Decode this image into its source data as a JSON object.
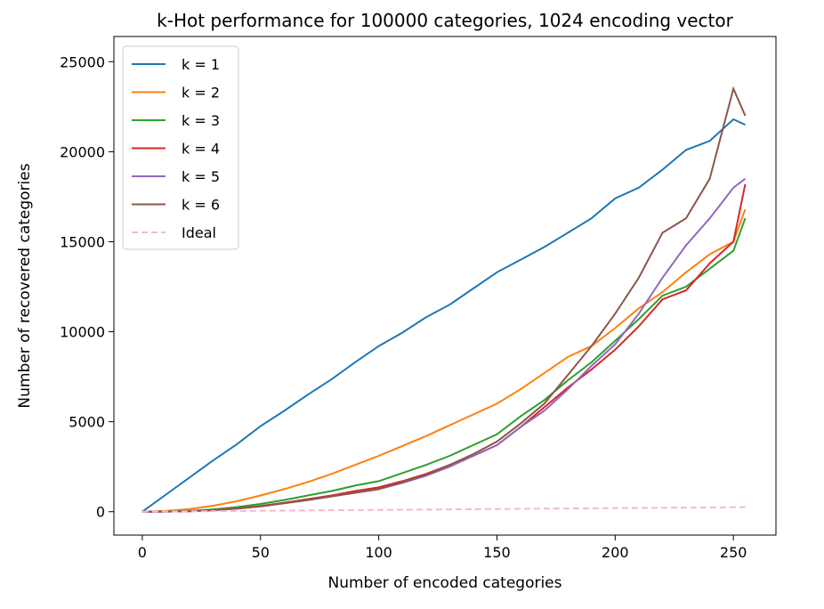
{
  "chart_data": {
    "type": "line",
    "title": "k-Hot performance for 100000 categories, 1024 encoding vector",
    "xlabel": "Number of encoded categories",
    "ylabel": "Number of recovered categories",
    "xlim": [
      -12,
      268
    ],
    "ylim": [
      -1300,
      26400
    ],
    "xticks": [
      0,
      50,
      100,
      150,
      200,
      250
    ],
    "yticks": [
      0,
      5000,
      10000,
      15000,
      20000,
      25000
    ],
    "grid": false,
    "legend_placement": "top-left",
    "x": [
      0,
      10,
      20,
      30,
      40,
      50,
      60,
      70,
      80,
      90,
      100,
      110,
      120,
      130,
      140,
      150,
      160,
      170,
      180,
      190,
      200,
      210,
      220,
      230,
      240,
      250,
      255
    ],
    "series": [
      {
        "name": "k = 1",
        "color": "#1f77b4",
        "dashed": false,
        "values": [
          0,
          950,
          1900,
          2850,
          3750,
          4750,
          5600,
          6500,
          7350,
          8300,
          9200,
          9950,
          10800,
          11500,
          12400,
          13300,
          14000,
          14700,
          15500,
          16300,
          17400,
          18000,
          19000,
          20100,
          20600,
          21800,
          21500
        ]
      },
      {
        "name": "k = 2",
        "color": "#ff7f0e",
        "dashed": false,
        "values": [
          0,
          40,
          150,
          330,
          580,
          900,
          1250,
          1650,
          2100,
          2600,
          3100,
          3650,
          4200,
          4800,
          5400,
          6000,
          6800,
          7700,
          8600,
          9200,
          10200,
          11300,
          12200,
          13300,
          14300,
          15000,
          16800
        ]
      },
      {
        "name": "k = 3",
        "color": "#2ca02c",
        "dashed": false,
        "values": [
          0,
          10,
          50,
          130,
          260,
          430,
          650,
          900,
          1150,
          1450,
          1700,
          2150,
          2600,
          3100,
          3700,
          4300,
          5300,
          6200,
          7300,
          8300,
          9500,
          10700,
          12000,
          12500,
          13500,
          14500,
          16300
        ]
      },
      {
        "name": "k = 4",
        "color": "#d62728",
        "dashed": false,
        "values": [
          0,
          5,
          30,
          90,
          180,
          320,
          500,
          700,
          900,
          1150,
          1350,
          1700,
          2100,
          2600,
          3100,
          3700,
          4700,
          5800,
          6900,
          7900,
          9000,
          10300,
          11800,
          12300,
          13800,
          15000,
          18200
        ]
      },
      {
        "name": "k = 5",
        "color": "#9467bd",
        "dashed": false,
        "values": [
          0,
          5,
          25,
          80,
          170,
          300,
          470,
          650,
          850,
          1050,
          1250,
          1600,
          2000,
          2500,
          3100,
          3700,
          4700,
          5600,
          6800,
          8100,
          9300,
          11000,
          13000,
          14800,
          16300,
          18000,
          18500
        ]
      },
      {
        "name": "k = 6",
        "color": "#8c564b",
        "dashed": false,
        "values": [
          0,
          5,
          25,
          80,
          170,
          300,
          470,
          650,
          850,
          1050,
          1250,
          1650,
          2050,
          2600,
          3200,
          3900,
          4900,
          6000,
          7600,
          9200,
          11000,
          13000,
          15500,
          16300,
          18500,
          23500,
          22000
        ]
      },
      {
        "name": "Ideal",
        "color": "#f7b6d2",
        "dashed": true,
        "values": [
          0,
          10,
          20,
          30,
          40,
          50,
          60,
          70,
          80,
          90,
          100,
          110,
          120,
          130,
          140,
          150,
          160,
          170,
          180,
          190,
          200,
          210,
          220,
          230,
          240,
          250,
          255
        ]
      }
    ]
  }
}
